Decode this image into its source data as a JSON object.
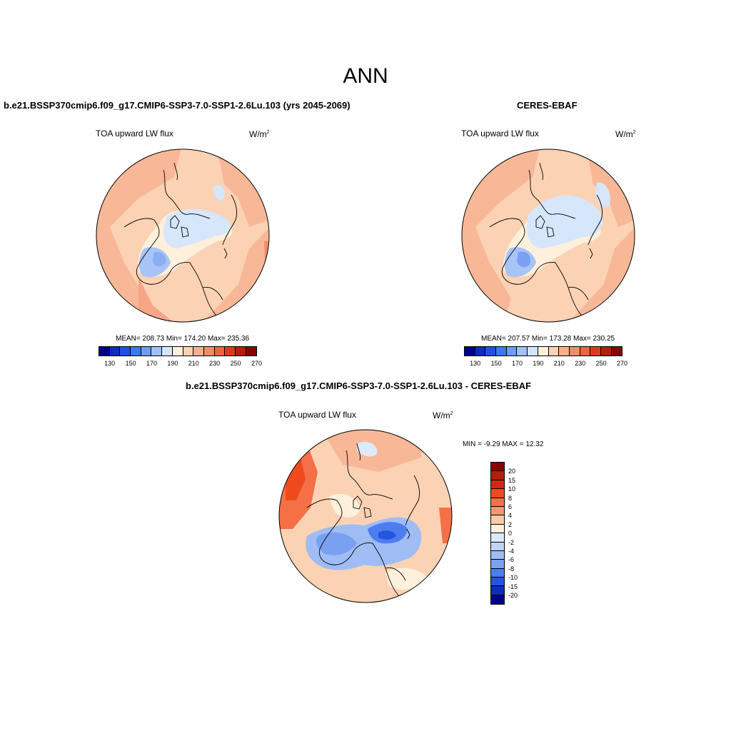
{
  "main_title": "ANN",
  "panels": [
    {
      "title": "b.e21.BSSP370cmip6.f09_g17.CMIP6-SSP3-7.0-SSP1-2.6Lu.103 (yrs 2045-2069)",
      "variable": "TOA upward LW flux",
      "units": "W/m",
      "units_sup": "2",
      "stats": "MEAN= 208.73  Min= 174.20  Max= 235.36",
      "colorbar_ticks": [
        "130",
        "150",
        "170",
        "190",
        "210",
        "230",
        "250",
        "270"
      ]
    },
    {
      "title": "CERES-EBAF",
      "variable": "TOA upward LW flux",
      "units": "W/m",
      "units_sup": "2",
      "stats": "MEAN= 207.57  Min= 173.28  Max= 230.25",
      "colorbar_ticks": [
        "130",
        "150",
        "170",
        "190",
        "210",
        "230",
        "250",
        "270"
      ]
    },
    {
      "title": "b.e21.BSSP370cmip6.f09_g17.CMIP6-SSP3-7.0-SSP1-2.6Lu.103 - CERES-EBAF",
      "variable": "TOA upward LW flux",
      "units": "W/m",
      "units_sup": "2",
      "stats": "MIN =  -9.29 MAX =  12.32",
      "colorbar_ticks": [
        "20",
        "15",
        "10",
        "8",
        "6",
        "4",
        "2",
        "0",
        "-2",
        "-4",
        "-6",
        "-8",
        "-10",
        "-15",
        "-20"
      ]
    }
  ],
  "colors": {
    "abs_scale": [
      "#00008b",
      "#0a2dbf",
      "#1e50e6",
      "#3c78f0",
      "#6e9cf5",
      "#a0c0f8",
      "#d2e6fa",
      "#fff0dc",
      "#fcd2b4",
      "#faaf8c",
      "#f58c64",
      "#ef6440",
      "#dc3c1e",
      "#b41e0a",
      "#8b0000"
    ],
    "diff_scale": [
      "#8b0000",
      "#b41e0a",
      "#d7280e",
      "#ef4a1e",
      "#f57046",
      "#f8966e",
      "#facaa8",
      "#fff0dc",
      "#dce9fa",
      "#bed4f8",
      "#9fbcf5",
      "#7aa0f2",
      "#4d7ef0",
      "#2455e0",
      "#0a2dbf",
      "#00008b"
    ]
  }
}
